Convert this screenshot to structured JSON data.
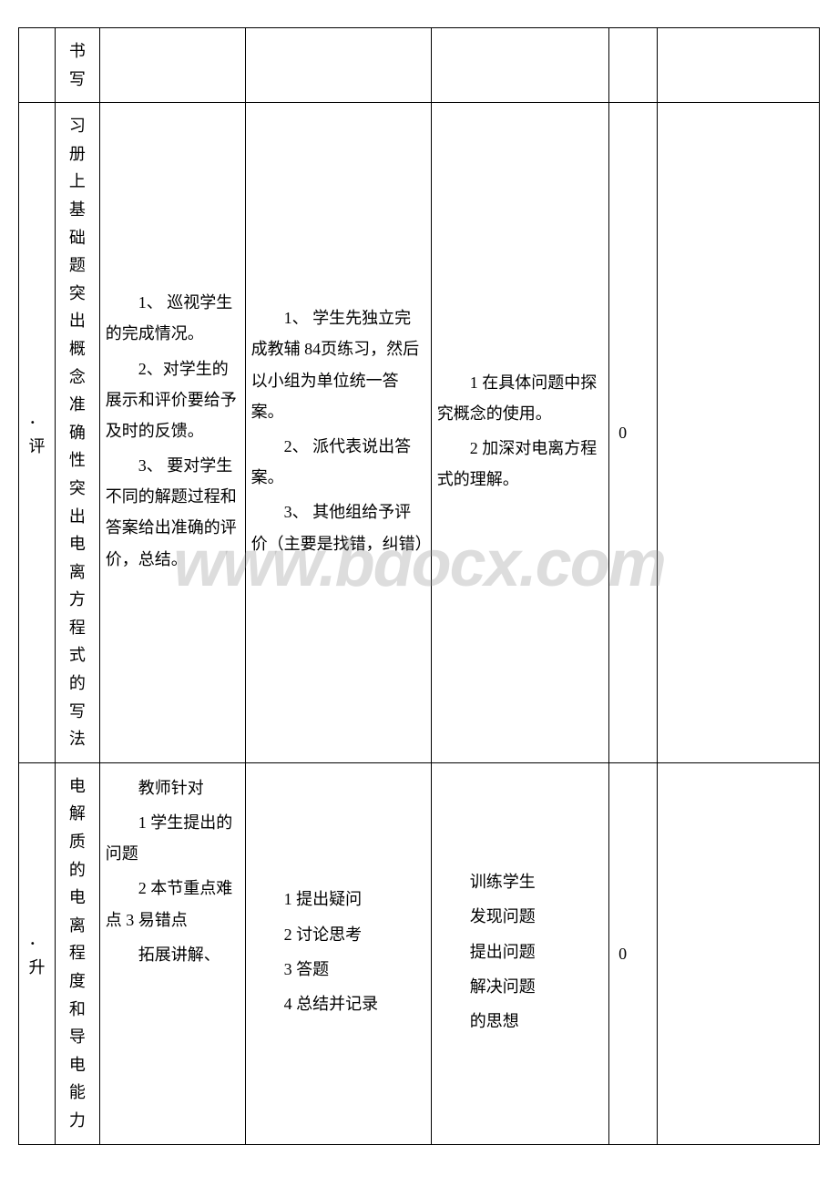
{
  "watermark": "www.bdocx.com",
  "border_color": "#000000",
  "background_color": "#ffffff",
  "text_color": "#000000",
  "font_family": "SimSun",
  "col_widths_pct": [
    4.5,
    5.5,
    18,
    23,
    22,
    6,
    20
  ],
  "rows": [
    {
      "c1": "",
      "c2": "书写",
      "c3": "",
      "c4": "",
      "c5": "",
      "c6": "",
      "c7": ""
    },
    {
      "c1": "．评",
      "c2_multi": "习册上基础题　突出概念准确性　突出电离方程式的写法",
      "c3_items": [
        "　　1、 巡视学生的完成情况。",
        "　　2、对学生的展示和评价要给予及时的反馈。",
        "　　3、 要对学生不同的解题过程和答案给出准确的评价，总结。"
      ],
      "c4_items": [
        "　　1、 学生先独立完成教辅 84页练习，然后以小组为单位统一答案。",
        "　　2、 派代表说出答案。",
        "　　3、 其他组给予评价（主要是找错，纠错）"
      ],
      "c5_items": [
        "　　1 在具体问题中探究概念的使用。",
        "　　2 加深对电离方程式的理解。"
      ],
      "c6": "0",
      "c7": ""
    },
    {
      "c1": "．升",
      "c2_multi": "电解质的电离程度和导电能力",
      "c3_items": [
        "　　教师针对",
        "　　1 学生提出的问题",
        "　　2 本节重点难点 3 易错点",
        "　　拓展讲解、"
      ],
      "c4_items": [
        "　　1 提出疑问",
        "　　2 讨论思考",
        "　　3 答题",
        "　　4 总结并记录"
      ],
      "c5_items": [
        "　　训练学生",
        "　　发现问题",
        "　　提出问题",
        "　　解决问题",
        "　　的思想"
      ],
      "c6": "0",
      "c7": ""
    }
  ]
}
